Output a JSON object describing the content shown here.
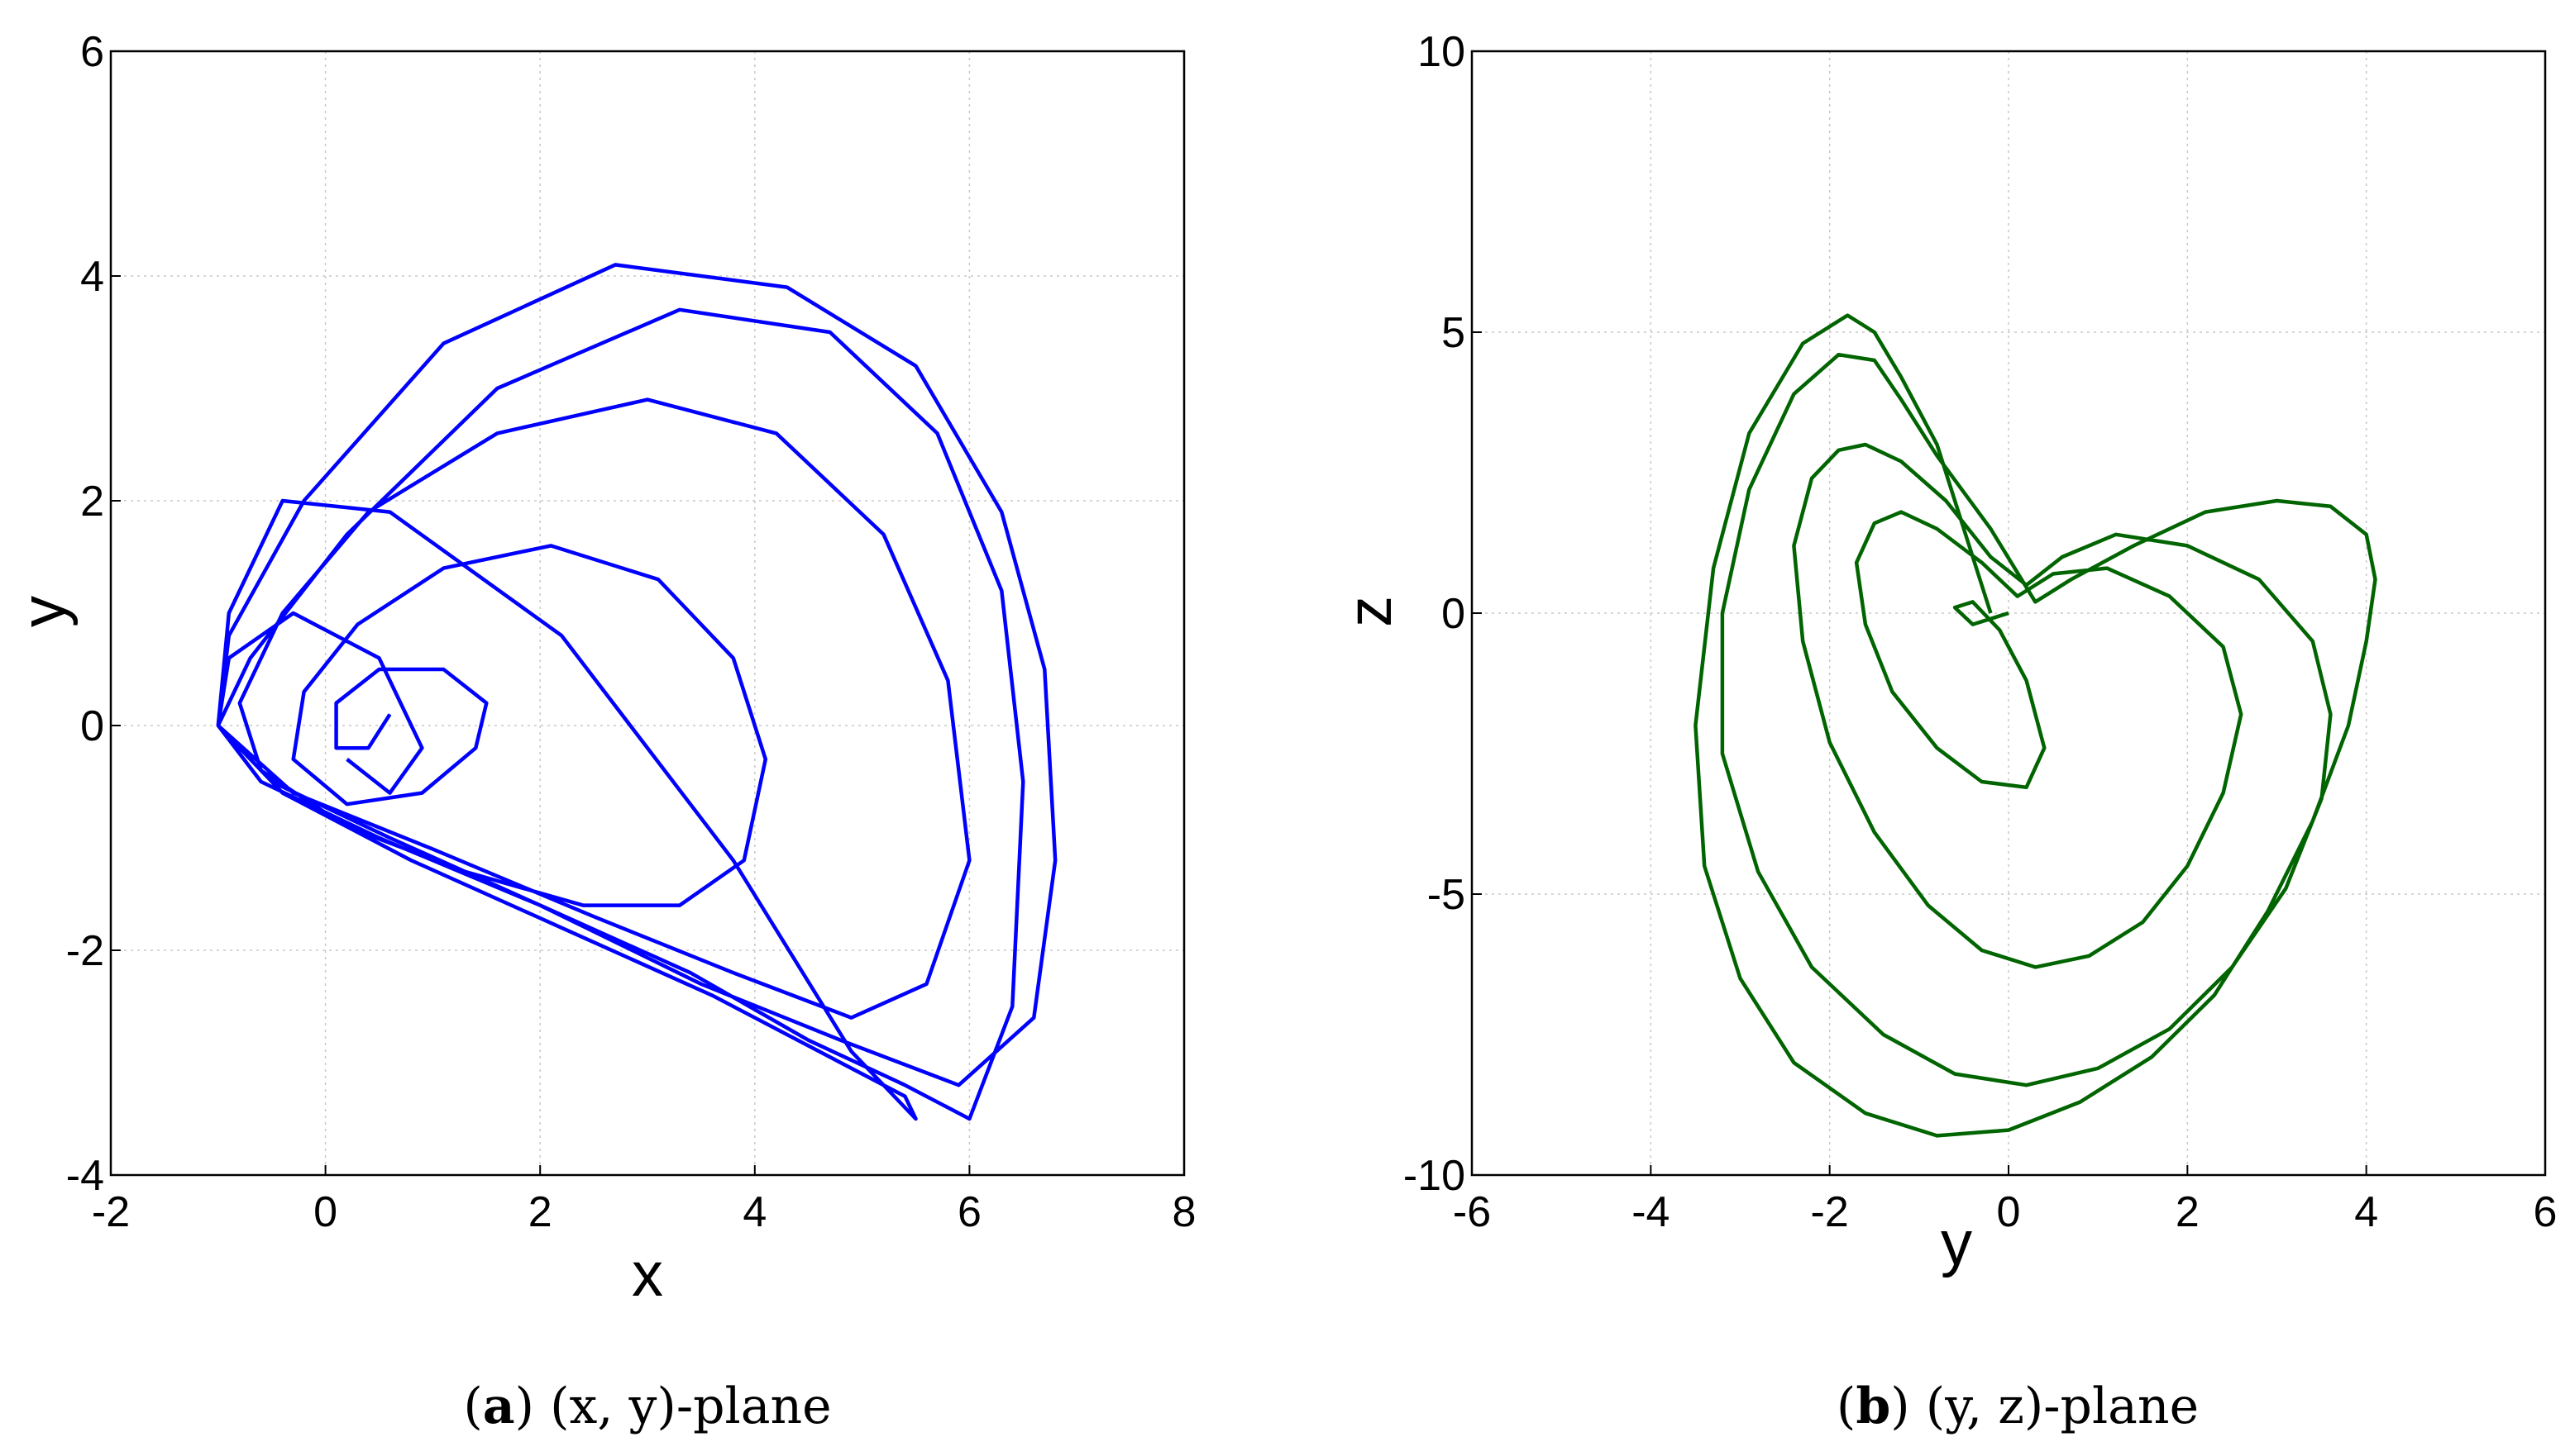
{
  "chart_data": [
    {
      "type": "line",
      "xlabel": "x",
      "ylabel": "y",
      "xlim": [
        -2,
        8
      ],
      "ylim": [
        -4,
        6
      ],
      "xticks": [
        -2,
        0,
        2,
        4,
        6,
        8
      ],
      "yticks": [
        -4,
        -2,
        0,
        2,
        4,
        6
      ],
      "grid": true,
      "color": "#0000ff",
      "caption_tag": "a",
      "caption_text": "(x, y)-plane",
      "series": [
        {
          "x": [
            0.2,
            0.6,
            0.9,
            0.5,
            -0.3,
            -0.9,
            -1.0,
            -0.4,
            0.8,
            2.2,
            3.6,
            4.6,
            5.4,
            5.5,
            4.9,
            3.8,
            2.2,
            0.6,
            -0.4,
            -0.9,
            -1.0,
            -0.5,
            0.6,
            2.0,
            3.4,
            4.5,
            5.4,
            6.0,
            6.4,
            6.5,
            6.3,
            5.7,
            4.7,
            3.3,
            1.6,
            0.2,
            -0.7,
            -1.0,
            -0.6,
            0.5,
            2.0,
            3.5,
            4.8,
            5.9,
            6.6,
            6.8,
            6.7,
            6.3,
            5.5,
            4.3,
            2.7,
            1.1,
            -0.2,
            -0.9,
            -1.0,
            -0.3,
            1.0,
            2.5,
            3.8,
            4.9,
            5.6,
            6.0,
            5.8,
            5.2,
            4.2,
            3.0,
            1.6,
            0.4,
            -0.4,
            -0.8,
            -0.6,
            0.2,
            1.3,
            2.4,
            3.3,
            3.9,
            4.1,
            3.8,
            3.1,
            2.1,
            1.1,
            0.3,
            -0.2,
            -0.3,
            0.2,
            0.9,
            1.4,
            1.5,
            1.1,
            0.5,
            0.1,
            0.1,
            0.4,
            0.6
          ],
          "y": [
            -0.3,
            -0.6,
            -0.2,
            0.6,
            1.0,
            0.6,
            0.0,
            -0.6,
            -1.2,
            -1.8,
            -2.4,
            -2.9,
            -3.3,
            -3.5,
            -2.9,
            -1.2,
            0.8,
            1.9,
            2.0,
            1.0,
            0.0,
            -0.5,
            -1.0,
            -1.6,
            -2.2,
            -2.8,
            -3.2,
            -3.5,
            -2.5,
            -0.5,
            1.2,
            2.6,
            3.5,
            3.7,
            3.0,
            1.7,
            0.6,
            0.0,
            -0.5,
            -1.0,
            -1.6,
            -2.3,
            -2.8,
            -3.2,
            -2.6,
            -1.2,
            0.5,
            1.9,
            3.2,
            3.9,
            4.1,
            3.4,
            2.0,
            0.8,
            0.0,
            -0.6,
            -1.1,
            -1.7,
            -2.2,
            -2.6,
            -2.3,
            -1.2,
            0.4,
            1.7,
            2.6,
            2.9,
            2.6,
            1.9,
            1.0,
            0.2,
            -0.4,
            -0.9,
            -1.3,
            -1.6,
            -1.6,
            -1.2,
            -0.3,
            0.6,
            1.3,
            1.6,
            1.4,
            0.9,
            0.3,
            -0.3,
            -0.7,
            -0.6,
            -0.2,
            0.2,
            0.5,
            0.5,
            0.2,
            -0.2,
            -0.2,
            0.1
          ]
        }
      ]
    },
    {
      "type": "line",
      "xlabel": "y",
      "ylabel": "z",
      "xlim": [
        -6,
        6
      ],
      "ylim": [
        -10,
        10
      ],
      "xticks": [
        -6,
        -4,
        -2,
        0,
        2,
        4,
        6
      ],
      "yticks": [
        -10,
        -5,
        0,
        5,
        10
      ],
      "grid": true,
      "color": "#006400",
      "caption_tag": "b",
      "caption_text": "(y, z)-plane",
      "series": [
        {
          "x": [
            -0.2,
            -0.5,
            -0.8,
            -1.2,
            -1.5,
            -1.8,
            -2.3,
            -2.9,
            -3.3,
            -3.5,
            -3.4,
            -3.0,
            -2.4,
            -1.6,
            -0.8,
            0.0,
            0.8,
            1.6,
            2.3,
            2.9,
            3.4,
            3.8,
            4.0,
            4.1,
            4.0,
            3.6,
            3.0,
            2.2,
            1.4,
            0.7,
            0.5,
            0.3,
            -0.2,
            -0.8,
            -1.2,
            -1.5,
            -1.9,
            -2.4,
            -2.9,
            -3.2,
            -3.2,
            -2.8,
            -2.2,
            -1.4,
            -0.6,
            0.2,
            1.0,
            1.8,
            2.5,
            3.1,
            3.5,
            3.6,
            3.4,
            2.8,
            2.0,
            1.2,
            0.6,
            0.2,
            -0.2,
            -0.7,
            -1.2,
            -1.6,
            -1.9,
            -2.2,
            -2.4,
            -2.3,
            -2.0,
            -1.5,
            -0.9,
            -0.3,
            0.3,
            0.9,
            1.5,
            2.0,
            2.4,
            2.6,
            2.4,
            1.8,
            1.1,
            0.5,
            0.1,
            -0.3,
            -0.8,
            -1.2,
            -1.5,
            -1.7,
            -1.6,
            -1.3,
            -0.8,
            -0.3,
            0.2,
            0.4,
            0.2,
            -0.1,
            -0.4,
            -0.6,
            -0.4,
            -0.2,
            0.0
          ],
          "y": [
            0.0,
            1.5,
            3.0,
            4.2,
            5.0,
            5.3,
            4.8,
            3.2,
            0.8,
            -2.0,
            -4.5,
            -6.5,
            -8.0,
            -8.9,
            -9.3,
            -9.2,
            -8.7,
            -7.9,
            -6.8,
            -5.3,
            -3.7,
            -2.0,
            -0.5,
            0.6,
            1.4,
            1.9,
            2.0,
            1.8,
            1.2,
            0.6,
            0.4,
            0.2,
            1.5,
            2.8,
            3.8,
            4.5,
            4.6,
            3.9,
            2.2,
            0.0,
            -2.5,
            -4.6,
            -6.3,
            -7.5,
            -8.2,
            -8.4,
            -8.1,
            -7.4,
            -6.3,
            -4.9,
            -3.3,
            -1.8,
            -0.5,
            0.6,
            1.2,
            1.4,
            1.0,
            0.5,
            1.0,
            2.0,
            2.7,
            3.0,
            2.9,
            2.4,
            1.2,
            -0.5,
            -2.3,
            -3.9,
            -5.2,
            -6.0,
            -6.3,
            -6.1,
            -5.5,
            -4.5,
            -3.2,
            -1.8,
            -0.6,
            0.3,
            0.8,
            0.7,
            0.3,
            0.9,
            1.5,
            1.8,
            1.6,
            0.9,
            -0.2,
            -1.4,
            -2.4,
            -3.0,
            -3.1,
            -2.4,
            -1.2,
            -0.3,
            0.2,
            0.1,
            -0.2,
            -0.1,
            0.0
          ]
        }
      ]
    }
  ]
}
